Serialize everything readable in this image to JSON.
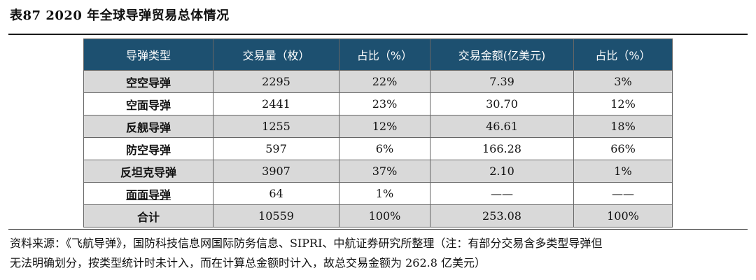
{
  "title": "表87  2020 年全球导弹贸易总体情况",
  "table": {
    "headers": [
      "导弹类型",
      "交易量（枚）",
      "占比（%）",
      "交易金额(亿美元)",
      "占比（%）"
    ],
    "rows": [
      [
        "空空导弹",
        "2295",
        "22%",
        "7.39",
        "3%"
      ],
      [
        "空面导弹",
        "2441",
        "23%",
        "30.70",
        "12%"
      ],
      [
        "反舰导弹",
        "1255",
        "12%",
        "46.61",
        "18%"
      ],
      [
        "防空导弹",
        "597",
        "6%",
        "166.28",
        "66%"
      ],
      [
        "反坦克导弹",
        "3907",
        "37%",
        "2.10",
        "1%"
      ],
      [
        "面面导弹",
        "64",
        "1%",
        "——",
        "——"
      ],
      [
        "合计",
        "10559",
        "100%",
        "253.08",
        "100%"
      ]
    ]
  },
  "source_lines": [
    "资料来源：《飞航导弹》，国防科技信息网国际防务信息、SIPRI、中航证券研究所整理（注：有部分交易含多类型导弹但",
    "无法明确划分，按类型统计时未计入，而在计算总金额时计入，故总交易金额为 262.8 亿美元）"
  ],
  "colors": {
    "header_bg": "#1d5070",
    "shade_row": "#d9d9d9"
  }
}
